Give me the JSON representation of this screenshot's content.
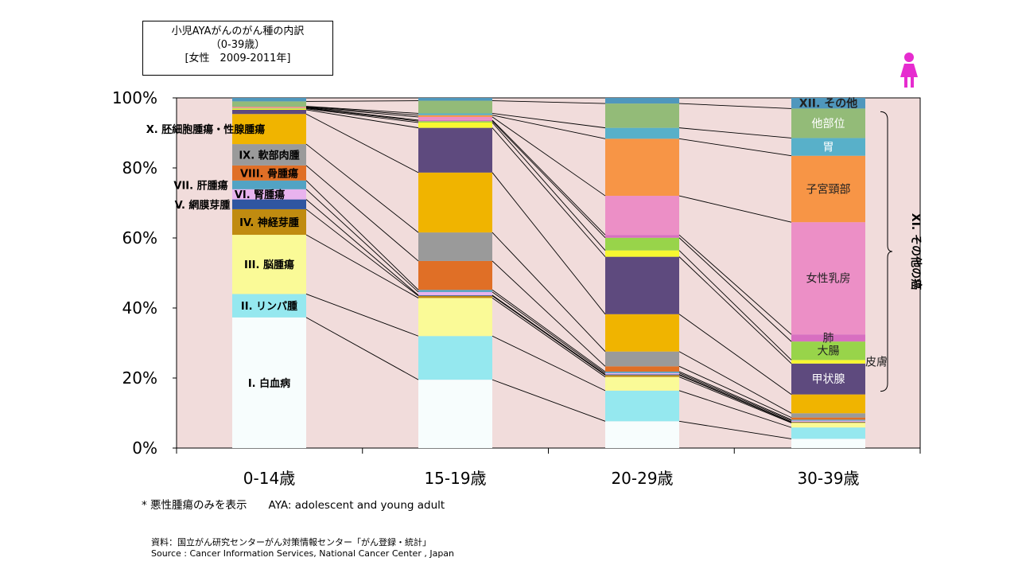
{
  "title_lines": [
    "小児AYAがんのがん種の内訳",
    "（0-39歳）",
    "[女性　2009-2011年]"
  ],
  "note": "* 悪性腫瘍のみを表示　　AYA: adolescent and young adult",
  "source_lines": [
    "資料：国立がん研究センターがん対策情報センター「がん登録・統計」",
    "Source : Cancer Information Services, National Cancer Center , Japan"
  ],
  "female_icon": "female-figure-icon",
  "colors": {
    "plot_bg": "#f1dcdb",
    "icon": "#e62ccf",
    "connector": "#000000"
  },
  "chart_data": {
    "type": "bar",
    "stacked": true,
    "normalized": true,
    "categories": [
      "0-14歳",
      "15-19歳",
      "20-29歳",
      "30-39歳"
    ],
    "y_ticks": [
      "0%",
      "20%",
      "40%",
      "60%",
      "80%",
      "100%"
    ],
    "ylim": [
      0,
      100
    ],
    "grid": false,
    "series": [
      {
        "name": "I. 白血病",
        "color": "#f7fdfd",
        "values": [
          37.3,
          19.4,
          7.6,
          2.6
        ]
      },
      {
        "name": "II. リンパ腫",
        "color": "#95e8ef",
        "values": [
          6.7,
          12.4,
          8.7,
          3.2
        ]
      },
      {
        "name": "III. 脳腫瘍",
        "color": "#fafa97",
        "values": [
          16.9,
          10.8,
          3.9,
          1.3
        ]
      },
      {
        "name": "IV. 神経芽腫",
        "color": "#c08b10",
        "values": [
          7.3,
          0.6,
          0.5,
          0.2
        ]
      },
      {
        "name": "V. 網膜芽腫",
        "color": "#2f56a1",
        "values": [
          2.8,
          0.2,
          0.2,
          0.1
        ]
      },
      {
        "name": "VI. 腎腫瘍",
        "color": "#e8b3ee",
        "values": [
          2.9,
          0.9,
          0.4,
          0.3
        ]
      },
      {
        "name": "VII. 肝腫瘍",
        "color": "#52a3c4",
        "values": [
          2.5,
          0.6,
          0.4,
          0.3
        ]
      },
      {
        "name": "VIII. 骨腫瘍",
        "color": "#e06f26",
        "values": [
          4.3,
          8.2,
          1.5,
          0.6
        ]
      },
      {
        "name": "IX. 軟部肉腫",
        "color": "#9a9a9a",
        "values": [
          6.1,
          8.1,
          4.2,
          1.2
        ]
      },
      {
        "name": "X. 胚細胞腫瘍・性腺腫瘍",
        "color": "#f0b400",
        "values": [
          8.6,
          17.0,
          10.6,
          5.3
        ]
      },
      {
        "name": "甲状腺",
        "color": "#5e4a7e",
        "values": [
          1.2,
          12.7,
          16.3,
          8.7
        ]
      },
      {
        "name": "皮膚",
        "color": "#f7f730",
        "values": [
          0.3,
          1.5,
          1.8,
          1.0
        ]
      },
      {
        "name": "大腸",
        "color": "#98d44a",
        "values": [
          0.2,
          0.4,
          3.6,
          5.2
        ]
      },
      {
        "name": "肺",
        "color": "#d86fc1",
        "values": [
          0.1,
          0.3,
          0.8,
          2.0
        ]
      },
      {
        "name": "女性乳房",
        "color": "#ec8fc6",
        "values": [
          0.1,
          0.9,
          11.1,
          31.6
        ]
      },
      {
        "name": "子宮頸部",
        "color": "#f79546",
        "values": [
          0.2,
          0.5,
          16.2,
          18.7
        ]
      },
      {
        "name": "胃",
        "color": "#58b0c9",
        "values": [
          0.1,
          0.5,
          3.1,
          5.0
        ]
      },
      {
        "name": "他部位",
        "color": "#93bb78",
        "values": [
          1.4,
          3.6,
          6.9,
          8.3
        ]
      },
      {
        "name": "XII. その他",
        "color": "#4f97bd",
        "values": [
          1.0,
          0.8,
          1.6,
          3.0
        ]
      }
    ],
    "bracket_label": "XI. その他の癌",
    "labels_col1": [
      {
        "series": 0,
        "text": "I. 白血病"
      },
      {
        "series": 1,
        "text": "II. リンパ腫"
      },
      {
        "series": 2,
        "text": "III. 脳腫瘍"
      },
      {
        "series": 3,
        "text": "IV. 神経芽腫"
      },
      {
        "series": 4,
        "text": "V. 網膜芽腫"
      },
      {
        "series": 5,
        "text": "VI. 腎腫瘍"
      },
      {
        "series": 6,
        "text": "VII. 肝腫瘍"
      },
      {
        "series": 7,
        "text": "VIII. 骨腫瘍"
      },
      {
        "series": 8,
        "text": "IX. 軟部肉腫"
      },
      {
        "series": 9,
        "text": "X. 胚細胞腫瘍・性腺腫瘍"
      }
    ],
    "labels_col4": [
      {
        "series": 10,
        "text": "甲状腺"
      },
      {
        "series": 11,
        "text": "皮膚"
      },
      {
        "series": 12,
        "text": "大腸"
      },
      {
        "series": 13,
        "text": "肺"
      },
      {
        "series": 14,
        "text": "女性乳房"
      },
      {
        "series": 15,
        "text": "子宮頸部"
      },
      {
        "series": 16,
        "text": "胃"
      },
      {
        "series": 17,
        "text": "他部位"
      },
      {
        "series": 18,
        "text": "XII. その他"
      }
    ]
  }
}
